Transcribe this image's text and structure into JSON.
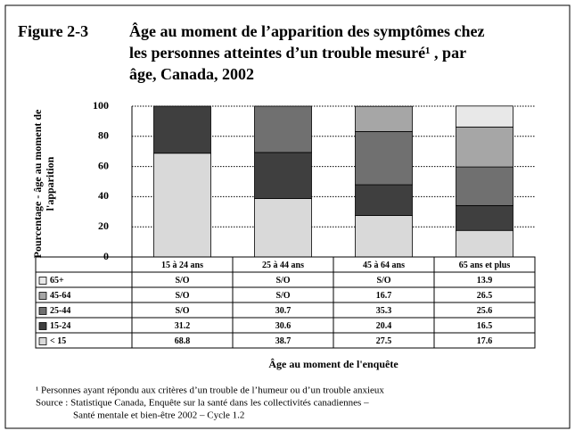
{
  "chart_data": {
    "type": "stacked_bar",
    "figure_label": "Figure 2-3",
    "title": [
      "Âge au  moment de l’apparition des symptômes chez",
      "les personnes atteintes d’un trouble mesuré¹ , par",
      "âge, Canada, 2002"
    ],
    "y_label": [
      "Pourcentage - âge au moment de",
      "l'apparition"
    ],
    "x_label": "Âge au moment de l'enquête",
    "categories": [
      "15 à 24 ans",
      "25 à 44 ans",
      "45 à 64 ans",
      "65 ans et plus"
    ],
    "series": [
      {
        "name": "< 15",
        "color": "#d9d9d9",
        "values": [
          68.8,
          38.7,
          27.5,
          17.6
        ]
      },
      {
        "name": "15-24",
        "color": "#3f3f3f",
        "values": [
          31.2,
          30.6,
          20.4,
          16.5
        ]
      },
      {
        "name": "25-44",
        "color": "#707070",
        "values": [
          null,
          30.7,
          35.3,
          25.6
        ],
        "value_labels": [
          "S/O",
          "30.7",
          "35.3",
          "25.6"
        ]
      },
      {
        "name": "45-64",
        "color": "#a6a6a6",
        "values": [
          null,
          null,
          16.7,
          26.5
        ],
        "value_labels": [
          "S/O",
          "S/O",
          "16.7",
          "26.5"
        ]
      },
      {
        "name": "65+",
        "color": "#e8e8e8",
        "values": [
          null,
          null,
          null,
          13.9
        ],
        "value_labels": [
          "S/O",
          "S/O",
          "S/O",
          "13.9"
        ]
      }
    ],
    "ylim": [
      0,
      100
    ],
    "yticks": [
      0,
      20,
      40,
      60,
      80,
      100
    ],
    "grid": true,
    "footnotes": [
      "¹ Personnes ayant répondu aux critères d’un trouble de l’humeur ou d’un trouble anxieux",
      "Source : Statistique Canada, Enquête sur la santé dans les collectivités canadiennes –",
      "Santé mentale et bien-être 2002 – Cycle  1.2"
    ]
  }
}
